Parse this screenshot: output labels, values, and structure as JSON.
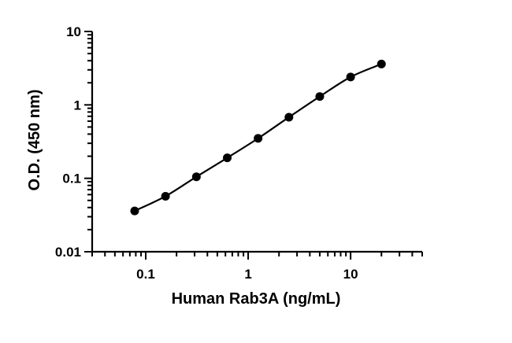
{
  "chart_data": {
    "type": "scatter",
    "title": "",
    "xlabel": "Human Rab3A (ng/mL)",
    "ylabel": "O.D. (450 nm)",
    "x_scale": "log",
    "y_scale": "log",
    "xlim": [
      0.03,
      50
    ],
    "ylim": [
      0.01,
      10
    ],
    "x_tick_labels": [
      "0.1",
      "1",
      "10"
    ],
    "y_tick_labels": [
      "0.01",
      "0.1",
      "1",
      "10"
    ],
    "grid": false,
    "legend": "none",
    "series": [
      {
        "x": [
          0.078,
          0.156,
          0.3125,
          0.625,
          1.25,
          2.5,
          5,
          10,
          20
        ],
        "y": [
          0.036,
          0.057,
          0.105,
          0.19,
          0.35,
          0.68,
          1.3,
          2.4,
          3.6
        ],
        "fit_curve": true,
        "color": "#000000"
      }
    ]
  }
}
